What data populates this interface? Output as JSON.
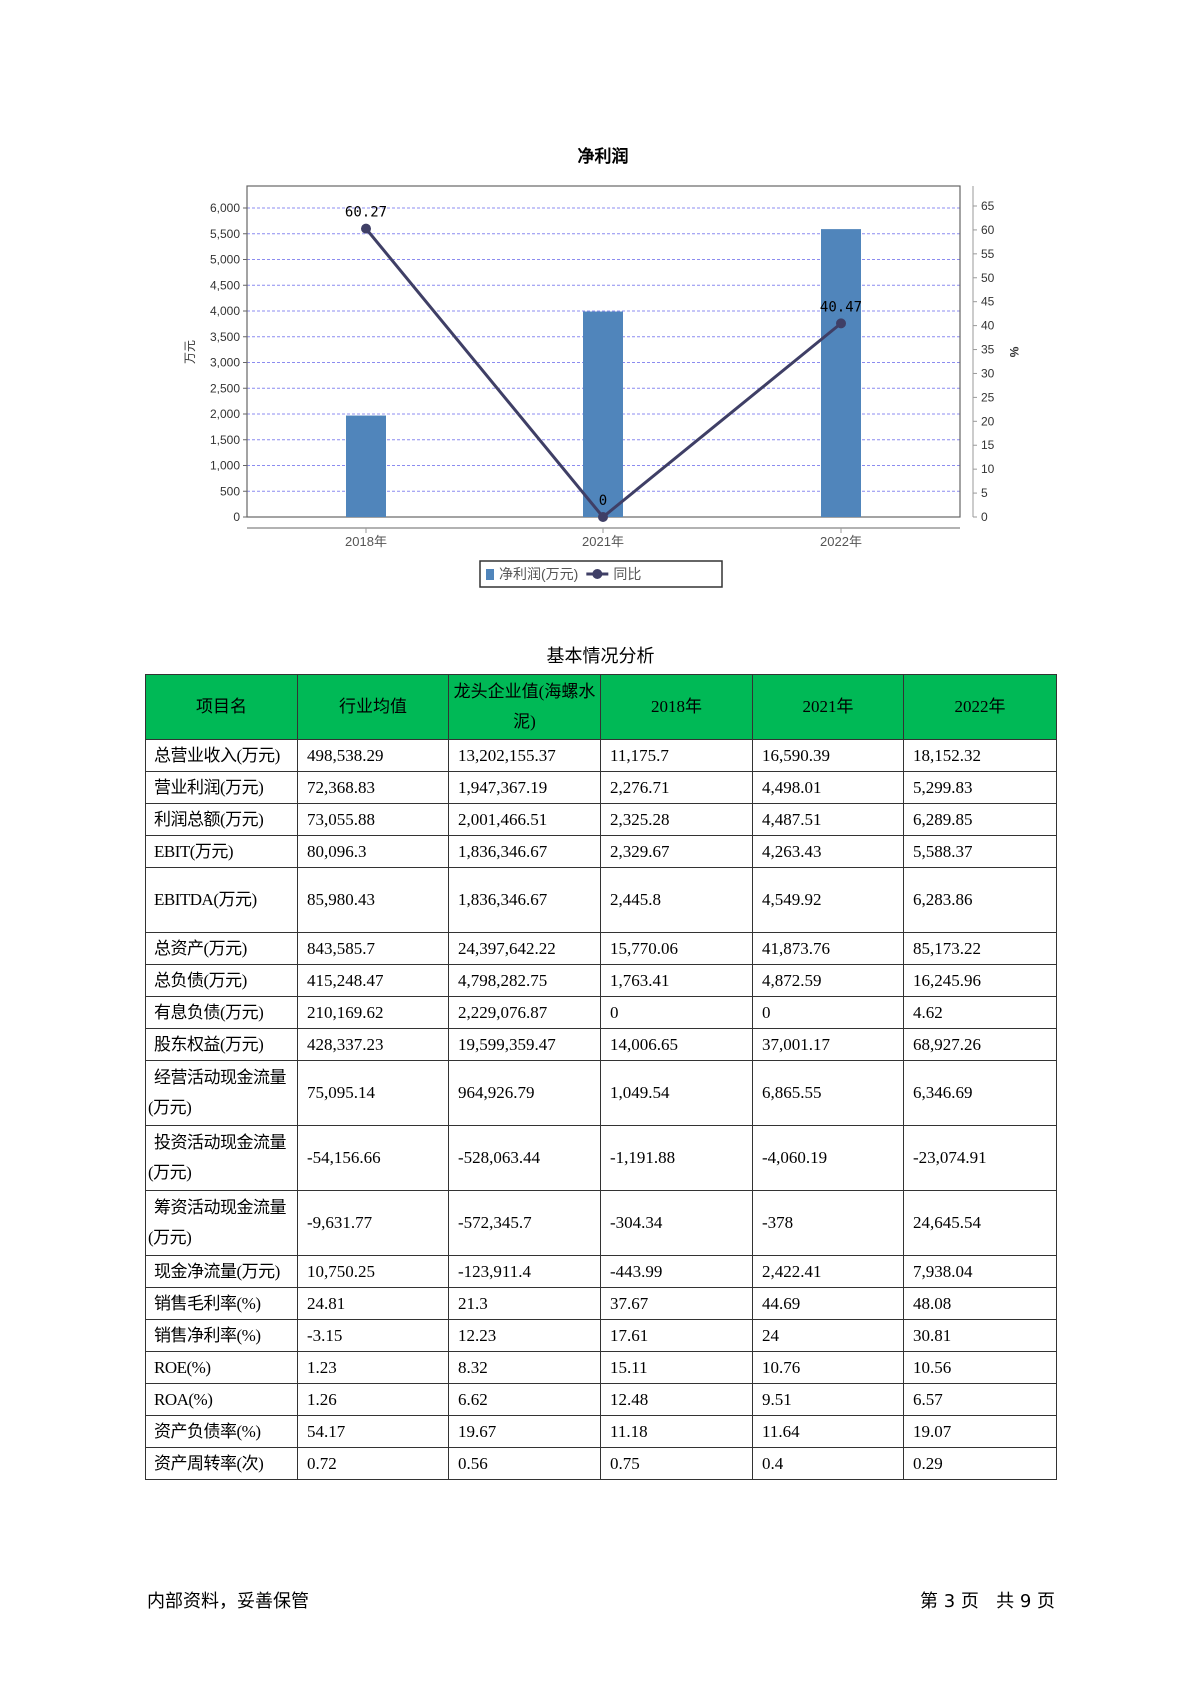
{
  "chart_data": {
    "type": "bar",
    "title": "净利润",
    "categories": [
      "2018年",
      "2021年",
      "2022年"
    ],
    "series": [
      {
        "name": "净利润(万元)",
        "type": "bar",
        "axis": "left",
        "values": [
          1970,
          3990,
          5590
        ],
        "color": "#5085bb"
      },
      {
        "name": "同比",
        "type": "line",
        "axis": "right",
        "values": [
          60.27,
          0,
          40.47
        ],
        "data_labels": [
          "60.27",
          "0",
          "40.47"
        ],
        "color": "#3f3f66"
      }
    ],
    "ylabel": "万元",
    "y2label": "%",
    "ylim": [
      0,
      6000
    ],
    "yticks": [
      0,
      500,
      1000,
      1500,
      2000,
      2500,
      3000,
      3500,
      4000,
      4500,
      5000,
      5500,
      6000
    ],
    "ytick_labels": [
      "0",
      "500",
      "1,000",
      "1,500",
      "2,000",
      "2,500",
      "3,000",
      "3,500",
      "4,000",
      "4,500",
      "5,000",
      "5,500",
      "6,000"
    ],
    "y2lim": [
      0,
      65
    ],
    "y2ticks": [
      0,
      5,
      10,
      15,
      20,
      25,
      30,
      35,
      40,
      45,
      50,
      55,
      60,
      65
    ],
    "grid": true,
    "legend": "bottom"
  },
  "table": {
    "caption": "基本情况分析",
    "headers": [
      "项目名",
      "行业均值",
      "龙头企业值(海螺水泥)",
      "2018年",
      "2021年",
      "2022年"
    ],
    "rows": [
      [
        "总营业收入(万元)",
        "498,538.29",
        "13,202,155.37",
        "11,175.7",
        "16,590.39",
        "18,152.32"
      ],
      [
        "营业利润(万元)",
        "72,368.83",
        "1,947,367.19",
        "2,276.71",
        "4,498.01",
        "5,299.83"
      ],
      [
        "利润总额(万元)",
        "73,055.88",
        "2,001,466.51",
        "2,325.28",
        "4,487.51",
        "6,289.85"
      ],
      [
        "EBIT(万元)",
        "80,096.3",
        "1,836,346.67",
        "2,329.67",
        "4,263.43",
        "5,588.37"
      ],
      [
        "EBITDA(万元)",
        "85,980.43",
        "1,836,346.67",
        "2,445.8",
        "4,549.92",
        "6,283.86"
      ],
      [
        "总资产(万元)",
        "843,585.7",
        "24,397,642.22",
        "15,770.06",
        "41,873.76",
        "85,173.22"
      ],
      [
        "总负债(万元)",
        "415,248.47",
        "4,798,282.75",
        "1,763.41",
        "4,872.59",
        "16,245.96"
      ],
      [
        "有息负债(万元)",
        "210,169.62",
        "2,229,076.87",
        "0",
        "0",
        "4.62"
      ],
      [
        "股东权益(万元)",
        "428,337.23",
        "19,599,359.47",
        "14,006.65",
        "37,001.17",
        "68,927.26"
      ],
      [
        "经营活动现金流量(万元)",
        "75,095.14",
        "964,926.79",
        "1,049.54",
        "6,865.55",
        "6,346.69"
      ],
      [
        "投资活动现金流量(万元)",
        "-54,156.66",
        "-528,063.44",
        "-1,191.88",
        "-4,060.19",
        "-23,074.91"
      ],
      [
        "筹资活动现金流量(万元)",
        "-9,631.77",
        "-572,345.7",
        "-304.34",
        "-378",
        "24,645.54"
      ],
      [
        "现金净流量(万元)",
        "10,750.25",
        "-123,911.4",
        "-443.99",
        "2,422.41",
        "7,938.04"
      ],
      [
        "销售毛利率(%)",
        "24.81",
        "21.3",
        "37.67",
        "44.69",
        "48.08"
      ],
      [
        "销售净利率(%)",
        "-3.15",
        "12.23",
        "17.61",
        "24",
        "30.81"
      ],
      [
        "ROE(%)",
        "1.23",
        "8.32",
        "15.11",
        "10.76",
        "10.56"
      ],
      [
        "ROA(%)",
        "1.26",
        "6.62",
        "12.48",
        "9.51",
        "6.57"
      ],
      [
        "资产负债率(%)",
        "54.17",
        "19.67",
        "11.18",
        "11.64",
        "19.07"
      ],
      [
        "资产周转率(次)",
        "0.72",
        "0.56",
        "0.75",
        "0.4",
        "0.29"
      ]
    ],
    "header_color": "#00b956"
  },
  "footer": {
    "left": "内部资料，妥善保管",
    "right": "第 3 页   共 9 页"
  }
}
